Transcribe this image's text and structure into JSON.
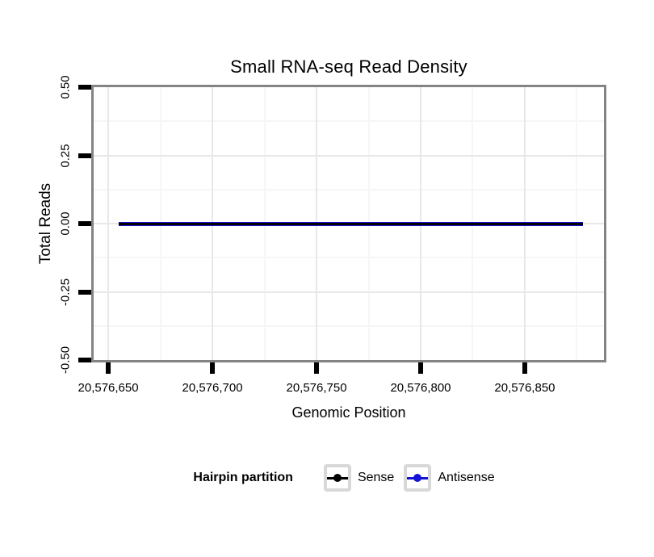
{
  "chart_data": {
    "type": "line",
    "title": "Small RNA-seq Read Density",
    "xlabel": "Genomic Position",
    "ylabel": "Total Reads",
    "xlim": [
      20576643,
      20576888
    ],
    "ylim": [
      -0.5,
      0.5
    ],
    "x_ticks": [
      {
        "value": 20576650,
        "label": "20,576,650"
      },
      {
        "value": 20576700,
        "label": "20,576,700"
      },
      {
        "value": 20576750,
        "label": "20,576,750"
      },
      {
        "value": 20576800,
        "label": "20,576,800"
      },
      {
        "value": 20576850,
        "label": "20,576,850"
      }
    ],
    "y_ticks": [
      {
        "value": 0.5,
        "label": "0.50"
      },
      {
        "value": 0.25,
        "label": "0.25"
      },
      {
        "value": 0,
        "label": "0.00"
      },
      {
        "value": -0.25,
        "label": "-0.25"
      },
      {
        "value": -0.5,
        "label": "-0.50"
      }
    ],
    "grid": {
      "major": true,
      "minor": true
    },
    "series": [
      {
        "name": "Sense",
        "color": "#000000",
        "x": [
          20576655,
          20576878
        ],
        "y": [
          0,
          0
        ]
      },
      {
        "name": "Antisense",
        "color": "#1414d8",
        "x": [
          20576655,
          20576878
        ],
        "y": [
          0,
          0
        ]
      }
    ],
    "legend": {
      "title": "Hairpin partition",
      "position": "bottom"
    },
    "colors": {
      "panel_border": "#848484",
      "grid_major": "#e8e8e8",
      "grid_minor": "#f6f6f6",
      "tick": "#000000",
      "legend_key_border": "#d8d8d8"
    }
  }
}
